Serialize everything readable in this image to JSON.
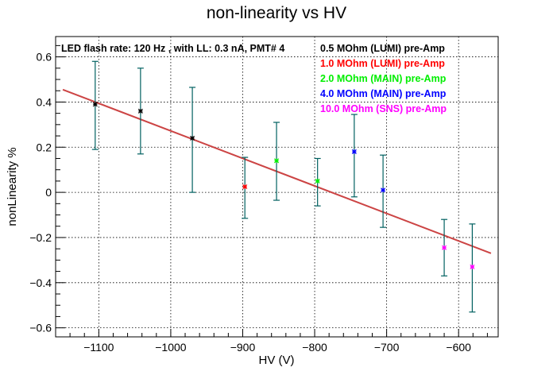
{
  "chart_data": {
    "type": "scatter",
    "title": "non-linearity vs HV",
    "xlabel": "HV (V)",
    "ylabel": "nonLinearity %",
    "xlim": [
      -1160,
      -545
    ],
    "ylim": [
      -0.64,
      0.69
    ],
    "x_ticks": [
      -1100,
      -1000,
      -900,
      -800,
      -700,
      -600
    ],
    "x_tick_labels": [
      "−1100",
      "−1000",
      "−900",
      "−800",
      "−700",
      "−600"
    ],
    "y_ticks": [
      -0.6,
      -0.4,
      -0.2,
      0,
      0.2,
      0.4,
      0.6
    ],
    "y_tick_labels": [
      "−0.6",
      "−0.4",
      "−0.2",
      "0",
      "0.2",
      "0.4",
      "0.6"
    ],
    "grid": true,
    "annotation": "LED flash rate: 120 Hz , with LL: 0.3 nA, PMT# 4",
    "legend_position": "top-right",
    "legend": [
      {
        "label": "0.5 MOhm (LUMI) pre-Amp",
        "color": "#000000"
      },
      {
        "label": "1.0 MOhm (LUMI) pre-Amp",
        "color": "#ff0000"
      },
      {
        "label": "2.0 MOhm (MAIN) pre-Amp",
        "color": "#00ee00"
      },
      {
        "label": "4.0 MOhm (MAIN) pre-Amp",
        "color": "#0000ff"
      },
      {
        "label": "10.0 MOhm (SNS) pre-Amp",
        "color": "#ff00ff"
      }
    ],
    "series": [
      {
        "color": "#000000",
        "points": [
          {
            "x": -1105,
            "y": 0.39,
            "ylow": 0.19,
            "yhigh": 0.58
          },
          {
            "x": -1042,
            "y": 0.36,
            "ylow": 0.17,
            "yhigh": 0.55
          },
          {
            "x": -970,
            "y": 0.24,
            "ylow": 0.0,
            "yhigh": 0.465
          }
        ]
      },
      {
        "color": "#ff0000",
        "points": [
          {
            "x": -897,
            "y": 0.025,
            "ylow": -0.115,
            "yhigh": 0.155
          }
        ]
      },
      {
        "color": "#00ee00",
        "points": [
          {
            "x": -853,
            "y": 0.14,
            "ylow": -0.035,
            "yhigh": 0.31
          },
          {
            "x": -796,
            "y": 0.05,
            "ylow": -0.06,
            "yhigh": 0.15
          }
        ]
      },
      {
        "color": "#0000ff",
        "points": [
          {
            "x": -745,
            "y": 0.18,
            "ylow": -0.02,
            "yhigh": 0.345
          },
          {
            "x": -705,
            "y": 0.01,
            "ylow": -0.155,
            "yhigh": 0.165
          }
        ]
      },
      {
        "color": "#ff00ff",
        "points": [
          {
            "x": -620,
            "y": -0.245,
            "ylow": -0.37,
            "yhigh": -0.12
          },
          {
            "x": -581,
            "y": -0.33,
            "ylow": -0.53,
            "yhigh": -0.14
          }
        ]
      }
    ],
    "error_bar_color": "#006060",
    "fit_line": {
      "color": "#cc4444",
      "x": [
        -1150,
        -555
      ],
      "y": [
        0.455,
        -0.27
      ]
    }
  }
}
